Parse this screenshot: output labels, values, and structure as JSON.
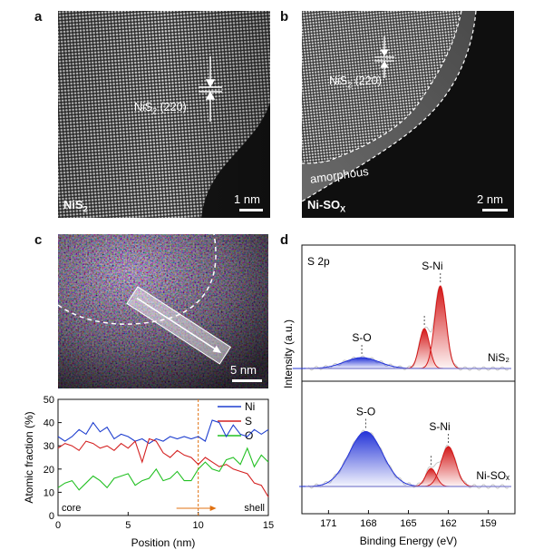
{
  "panels": {
    "a": {
      "letter": "a",
      "corner_label_base": "NiS",
      "corner_label_sub": "2",
      "lattice_base": "NiS",
      "lattice_sub": "2",
      "lattice_rest": " (220)",
      "scale_bar": "1 nm"
    },
    "b": {
      "letter": "b",
      "corner_label_base": "Ni-SO",
      "corner_label_sub": "X",
      "lattice_base": "NiS",
      "lattice_sub": "2",
      "lattice_rest": " (220)",
      "region_label": "amorphous",
      "scale_bar": "2 nm"
    },
    "c": {
      "letter": "c",
      "scale_bar": "5 nm"
    },
    "d": {
      "letter": "d"
    }
  },
  "colors": {
    "ni": "#1f3fcf",
    "s": "#d42020",
    "o": "#22c022",
    "marker": "#e07010",
    "so_peak": "#2434d8",
    "sni_peak": "#d41818"
  },
  "chart_data": [
    {
      "type": "line",
      "title": "",
      "xlabel": "Position (nm)",
      "ylabel": "Atomic fraction (%)",
      "xlim": [
        0,
        15
      ],
      "ylim": [
        0,
        50
      ],
      "xticks": [
        0,
        5,
        10,
        15
      ],
      "yticks": [
        0,
        10,
        20,
        30,
        40,
        50
      ],
      "legend": [
        "Ni",
        "S",
        "O"
      ],
      "annotations": {
        "left": "core",
        "right": "shell",
        "marker_x": 10
      },
      "x": [
        0,
        0.5,
        1,
        1.5,
        2,
        2.5,
        3,
        3.5,
        4,
        4.5,
        5,
        5.5,
        6,
        6.5,
        7,
        7.5,
        8,
        8.5,
        9,
        9.5,
        10,
        10.5,
        11,
        11.5,
        12,
        12.5,
        13,
        13.5,
        14,
        14.5,
        15
      ],
      "series": [
        {
          "name": "Ni",
          "values": [
            34,
            32,
            34,
            37,
            35,
            40,
            36,
            38,
            33,
            35,
            34,
            32,
            33,
            31,
            33,
            32,
            34,
            33,
            34,
            33,
            34,
            32,
            41,
            40,
            34,
            39,
            35,
            34,
            37,
            35,
            37
          ]
        },
        {
          "name": "S",
          "values": [
            29,
            31,
            30,
            28,
            32,
            31,
            29,
            30,
            28,
            31,
            29,
            32,
            23,
            33,
            32,
            27,
            25,
            28,
            26,
            25,
            22,
            25,
            23,
            21,
            22,
            20,
            19,
            18,
            14,
            13,
            8
          ]
        },
        {
          "name": "O",
          "values": [
            12,
            14,
            15,
            11,
            14,
            17,
            15,
            12,
            16,
            17,
            18,
            13,
            15,
            16,
            20,
            15,
            16,
            19,
            15,
            15,
            20,
            23,
            20,
            19,
            24,
            25,
            22,
            29,
            21,
            26,
            23
          ]
        }
      ]
    },
    {
      "type": "line",
      "title": "S 2p",
      "xlabel": "Binding Energy (eV)",
      "ylabel": "Intensity (a.u.)",
      "xlim": [
        173,
        157
      ],
      "xticks": [
        171,
        168,
        165,
        162,
        159
      ],
      "series": [
        {
          "name": "NiS2",
          "label": "NiS2",
          "peaks": [
            {
              "name": "S-O",
              "center": 168.5,
              "height": 0.12
            },
            {
              "name": "S-Ni",
              "center": 163.8,
              "height": 0.44
            },
            {
              "name": "S-Ni",
              "center": 162.6,
              "height": 0.91
            }
          ]
        },
        {
          "name": "Ni-SOX",
          "label": "Ni-SOX",
          "peaks": [
            {
              "name": "S-O",
              "center": 168.2,
              "height": 0.55
            },
            {
              "name": "S-Ni",
              "center": 163.3,
              "height": 0.18
            },
            {
              "name": "S-Ni",
              "center": 162.0,
              "height": 0.4
            }
          ]
        }
      ]
    }
  ]
}
